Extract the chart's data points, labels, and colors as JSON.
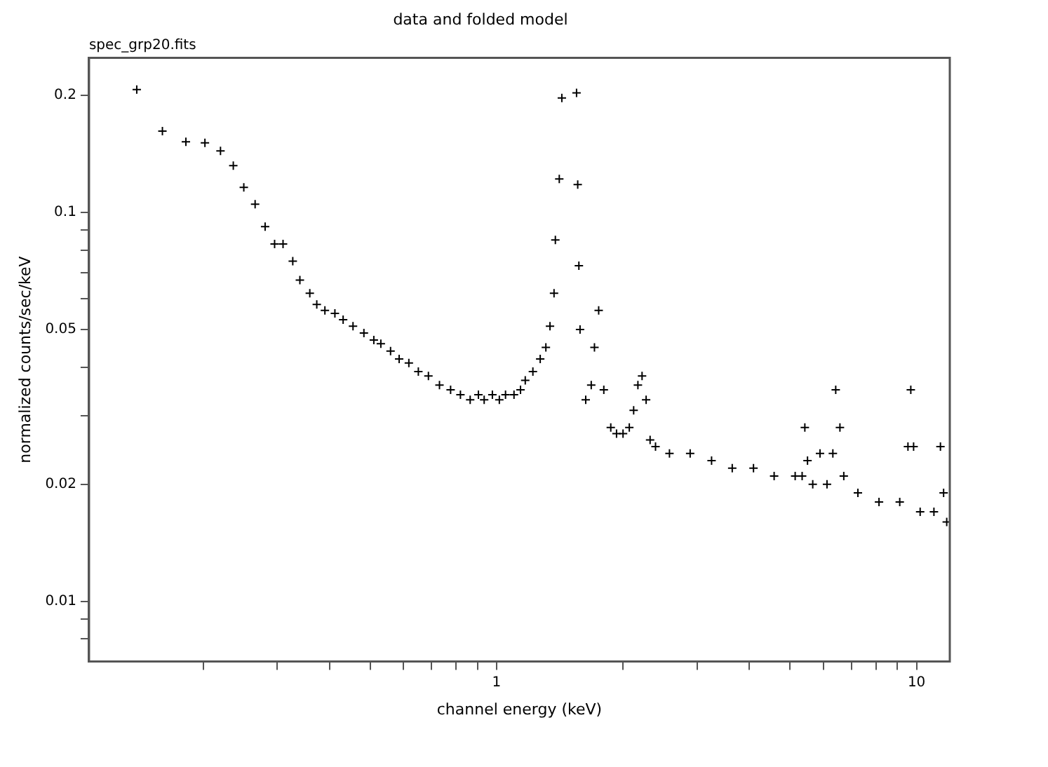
{
  "chart_data": {
    "type": "scatter",
    "title": "data and folded model",
    "xlabel": "channel energy (keV)",
    "ylabel": "normalized counts/sec/keV",
    "annotations": [
      "spec_grp20.fits"
    ],
    "log": "xy",
    "grid": false,
    "legend": false,
    "marker": "cross",
    "xlim": [
      0.107,
      12
    ],
    "ylim": [
      0.007,
      0.25
    ],
    "xticks": [
      {
        "value": 0.2,
        "label": null
      },
      {
        "value": 0.3,
        "label": null
      },
      {
        "value": 0.4,
        "label": null
      },
      {
        "value": 0.5,
        "label": null
      },
      {
        "value": 0.6,
        "label": null
      },
      {
        "value": 0.7,
        "label": null
      },
      {
        "value": 0.8,
        "label": null
      },
      {
        "value": 0.9,
        "label": null
      },
      1,
      {
        "value": 2,
        "label": null
      },
      {
        "value": 3,
        "label": null
      },
      {
        "value": 4,
        "label": null
      },
      {
        "value": 5,
        "label": null
      },
      {
        "value": 6,
        "label": null
      },
      {
        "value": 7,
        "label": null
      },
      {
        "value": 8,
        "label": null
      },
      {
        "value": 9,
        "label": null
      },
      10
    ],
    "yticks": [
      {
        "value": 0.008,
        "label": null
      },
      {
        "value": 0.009,
        "label": null
      },
      0.01,
      0.02,
      {
        "value": 0.03,
        "label": null
      },
      {
        "value": 0.04,
        "label": null
      },
      0.05,
      {
        "value": 0.06,
        "label": null
      },
      {
        "value": 0.07,
        "label": null
      },
      {
        "value": 0.08,
        "label": null
      },
      {
        "value": 0.09,
        "label": null
      },
      0.1,
      0.2
    ],
    "series": [
      {
        "color": "#000000",
        "x": [
          0.139,
          0.16,
          0.182,
          0.202,
          0.22,
          0.236,
          0.25,
          0.266,
          0.281,
          0.296,
          0.31,
          0.327,
          0.34,
          0.359,
          0.373,
          0.39,
          0.412,
          0.431,
          0.455,
          0.483,
          0.51,
          0.53,
          0.559,
          0.586,
          0.618,
          0.651,
          0.688,
          0.731,
          0.777,
          0.82,
          0.865,
          0.905,
          0.934,
          0.977,
          1.015,
          1.05,
          1.1,
          1.14,
          1.17,
          1.22,
          1.27,
          1.31,
          1.34,
          1.37,
          1.38,
          1.41,
          1.43,
          1.55,
          1.56,
          1.57,
          1.58,
          1.63,
          1.68,
          1.71,
          1.75,
          1.8,
          1.87,
          1.93,
          2.0,
          2.07,
          2.12,
          2.17,
          2.22,
          2.27,
          2.32,
          2.39,
          2.58,
          2.89,
          3.25,
          3.64,
          4.09,
          4.58,
          5.14,
          5.34,
          5.42,
          5.5,
          5.66,
          5.89,
          6.12,
          6.32,
          6.42,
          6.57,
          6.71,
          7.25,
          8.14,
          9.12,
          9.54,
          9.69,
          9.84,
          10.2,
          11.0,
          11.4,
          11.6,
          11.8
        ],
        "values": [
          0.207,
          0.162,
          0.152,
          0.151,
          0.144,
          0.132,
          0.116,
          0.105,
          0.092,
          0.083,
          0.083,
          0.075,
          0.067,
          0.062,
          0.058,
          0.056,
          0.055,
          0.053,
          0.051,
          0.049,
          0.047,
          0.046,
          0.044,
          0.042,
          0.041,
          0.039,
          0.038,
          0.036,
          0.035,
          0.034,
          0.033,
          0.034,
          0.033,
          0.034,
          0.033,
          0.034,
          0.034,
          0.035,
          0.037,
          0.039,
          0.042,
          0.045,
          0.051,
          0.062,
          0.085,
          0.122,
          0.197,
          0.203,
          0.118,
          0.073,
          0.05,
          0.033,
          0.036,
          0.045,
          0.056,
          0.035,
          0.028,
          0.027,
          0.027,
          0.028,
          0.031,
          0.036,
          0.038,
          0.033,
          0.026,
          0.025,
          0.024,
          0.024,
          0.023,
          0.022,
          0.022,
          0.021,
          0.021,
          0.021,
          0.028,
          0.023,
          0.02,
          0.024,
          0.02,
          0.024,
          0.035,
          0.028,
          0.021,
          0.019,
          0.018,
          0.018,
          0.025,
          0.035,
          0.025,
          0.017,
          0.017,
          0.025,
          0.019,
          0.016
        ]
      }
    ]
  }
}
